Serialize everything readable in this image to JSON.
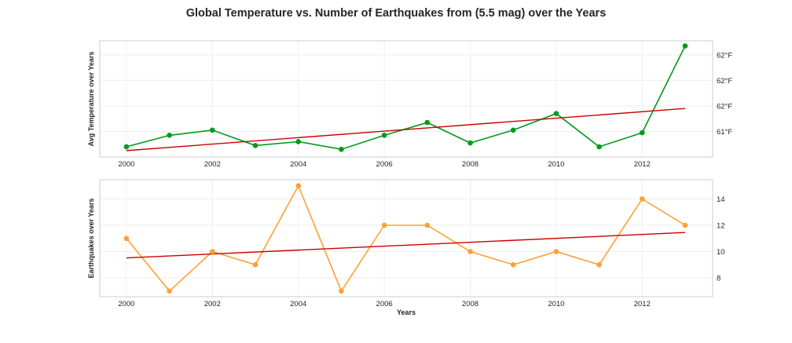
{
  "title": "Global Temperature vs. Number of Earthquakes from (5.5 mag) over the Years",
  "chart_data": [
    {
      "type": "line",
      "ylabel": "Avg Temperature over Years",
      "xlabel": "",
      "x": [
        2000,
        2001,
        2002,
        2003,
        2004,
        2005,
        2006,
        2007,
        2008,
        2009,
        2010,
        2011,
        2012,
        2013
      ],
      "series": [
        {
          "values": [
            61.28,
            61.37,
            61.41,
            61.29,
            61.32,
            61.26,
            61.37,
            61.47,
            61.31,
            61.41,
            61.54,
            61.28,
            61.39,
            62.07
          ],
          "color": "#009a1c",
          "marker": "circle"
        }
      ],
      "trend": {
        "x": [
          2000,
          2013
        ],
        "values": [
          61.25,
          61.58
        ],
        "color": "#cc0000"
      },
      "xlim": [
        1999.38,
        2013.64
      ],
      "ylim": [
        61.2,
        62.11
      ],
      "xticks": [
        2000,
        2002,
        2004,
        2006,
        2008,
        2010,
        2012
      ],
      "yticks": [
        61.4,
        61.6,
        61.8,
        62.0
      ],
      "ytick_labels": [
        "61°F",
        "62°F",
        "62°F",
        "62°F"
      ],
      "yaxis_side": "right",
      "grid": true
    },
    {
      "type": "line",
      "ylabel": "Earthquakes over Years",
      "xlabel": "Years",
      "x": [
        2000,
        2001,
        2002,
        2003,
        2004,
        2005,
        2006,
        2007,
        2008,
        2009,
        2010,
        2011,
        2012,
        2013
      ],
      "series": [
        {
          "values": [
            11,
            7,
            10,
            9,
            15,
            7,
            12,
            12,
            10,
            9,
            10,
            9,
            14,
            12
          ],
          "color": "#ffa033",
          "marker": "circle"
        }
      ],
      "trend": {
        "x": [
          2000,
          2013
        ],
        "values": [
          9.52,
          11.45
        ],
        "color": "#cc0000"
      },
      "xlim": [
        1999.38,
        2013.64
      ],
      "ylim": [
        6.57,
        15.46
      ],
      "xticks": [
        2000,
        2002,
        2004,
        2006,
        2008,
        2010,
        2012
      ],
      "yticks": [
        8,
        10,
        12,
        14
      ],
      "ytick_labels": [
        "8",
        "10",
        "12",
        "14"
      ],
      "yaxis_side": "right",
      "grid": true
    }
  ]
}
